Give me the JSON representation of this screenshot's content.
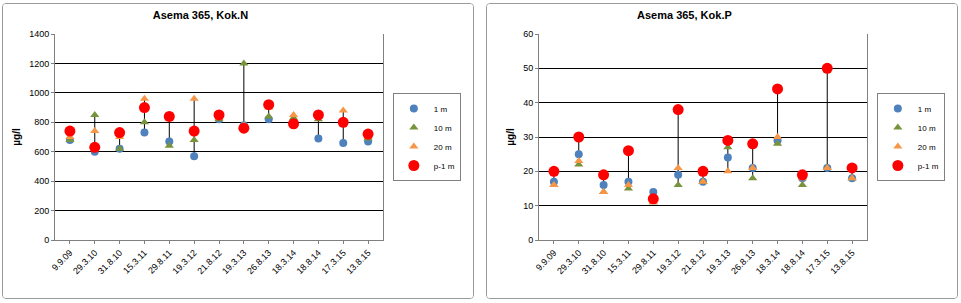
{
  "chart_data": [
    {
      "type": "scatter",
      "title": "Asema 365, Kok.N",
      "y_label": "µg/l",
      "categories": [
        "9.9.09",
        "29.3.10",
        "31.8.10",
        "15.3.11",
        "29.8.11",
        "19.3.12",
        "21.8.12",
        "19.3.13",
        "26.8.13",
        "18.3.14",
        "18.8.14",
        "17.3.15",
        "13.8.15"
      ],
      "series": [
        {
          "name": "1 m",
          "color": "#4f81bd",
          "marker": "circle",
          "values": [
            680,
            600,
            620,
            730,
            670,
            570,
            820,
            780,
            820,
            800,
            690,
            660,
            670
          ]
        },
        {
          "name": "10 m",
          "color": "#77933c",
          "marker": "triangle-up",
          "values": [
            680,
            850,
            620,
            800,
            640,
            680,
            820,
            1200,
            840,
            830,
            820,
            800,
            690
          ]
        },
        {
          "name": "20 m",
          "color": "#f79646",
          "marker": "triangle-up",
          "values": [
            700,
            740,
            700,
            960,
            820,
            960,
            830,
            780,
            900,
            850,
            840,
            880,
            700
          ]
        },
        {
          "name": "p-1 m",
          "color": "#ff0000",
          "marker": "circle",
          "values": [
            740,
            630,
            730,
            900,
            840,
            740,
            850,
            760,
            920,
            790,
            850,
            800,
            720
          ]
        }
      ],
      "ylim": [
        0,
        1400
      ],
      "yticks": [
        0,
        200,
        400,
        600,
        800,
        1000,
        1200,
        1400
      ],
      "grid": true,
      "legend": "right"
    },
    {
      "type": "scatter",
      "title": "Asema 365, Kok.P",
      "y_label": "µg/l",
      "categories": [
        "9.9.09",
        "29.3.10",
        "31.8.10",
        "15.3.11",
        "29.8.11",
        "19.3.12",
        "21.8.12",
        "19.3.13",
        "26.8.13",
        "18.3.14",
        "18.8.14",
        "17.3.15",
        "13.8.15"
      ],
      "series": [
        {
          "name": "1 m",
          "color": "#4f81bd",
          "marker": "circle",
          "values": [
            17,
            25,
            16,
            17,
            14,
            19,
            17,
            24,
            21,
            29,
            18,
            21,
            18
          ]
        },
        {
          "name": "10 m",
          "color": "#77933c",
          "marker": "triangle-up",
          "values": [
            16,
            22,
            14,
            15,
            11,
            16,
            17,
            27,
            18,
            28,
            16,
            21,
            18
          ]
        },
        {
          "name": "20 m",
          "color": "#f79646",
          "marker": "triangle-up",
          "values": [
            16,
            23,
            14,
            16,
            11,
            21,
            17,
            20,
            21,
            30,
            18,
            21,
            18
          ]
        },
        {
          "name": "p-1 m",
          "color": "#ff0000",
          "marker": "circle",
          "values": [
            20,
            30,
            19,
            26,
            12,
            38,
            20,
            29,
            28,
            44,
            19,
            50,
            21
          ]
        }
      ],
      "ylim": [
        0,
        60
      ],
      "yticks": [
        0,
        10,
        20,
        30,
        40,
        50,
        60
      ],
      "grid": true,
      "legend": "right"
    }
  ]
}
